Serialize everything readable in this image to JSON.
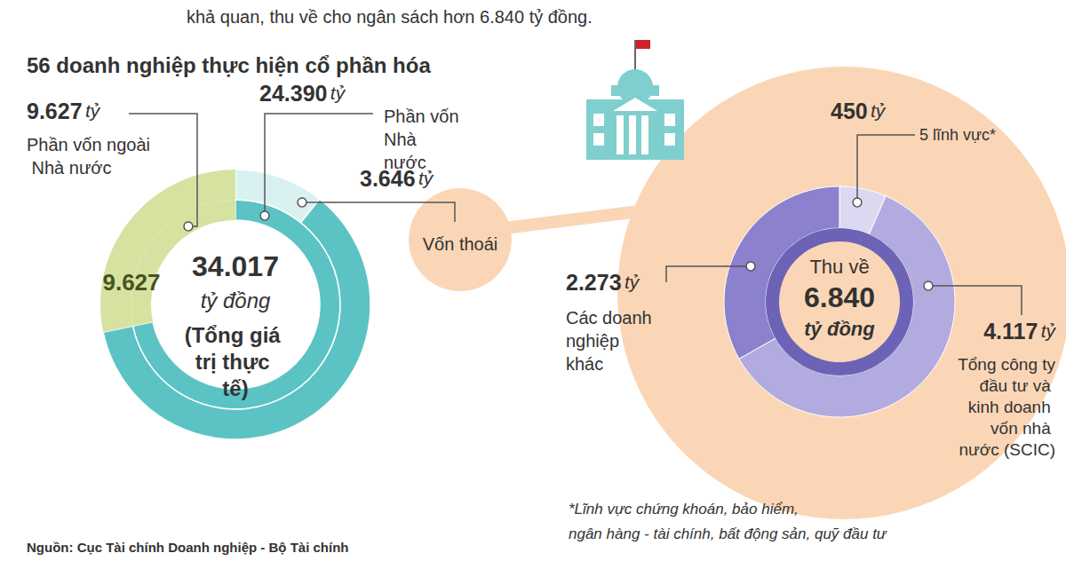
{
  "header": "khả quan, thu về cho ngân sách hơn 6.840 tỷ đồng.",
  "source": "Nguồn: Cục Tài chính Doanh nghiệp - Bộ Tài chính",
  "chart_data": [
    {
      "type": "pie",
      "title": "56 doanh nghiệp thực hiện cổ phần hóa",
      "unit": "tỷ",
      "categories": [
        "Phần vốn Nhà nước",
        "Phần vốn ngoài Nhà nước"
      ],
      "values": [
        24390,
        9627
      ],
      "value_labels": [
        "24.390",
        "9.627"
      ],
      "colors": [
        "#5cc3c4",
        "#d6e3a0"
      ],
      "inside_label": "9.627",
      "divested": {
        "label": "Vốn thoái",
        "value": 3646,
        "value_label": "3.646",
        "color": "#d9f1f1"
      },
      "total": {
        "value": 34017,
        "value_label": "34.017",
        "unit": "tỷ đồng",
        "label": "(Tổng giá trị thực tế)"
      }
    },
    {
      "type": "pie",
      "center_label": "Thu về",
      "unit": "tỷ",
      "categories": [
        "5 lĩnh vực*",
        "Tổng công ty đầu tư và kinh doanh vốn nhà nước (SCIC)",
        "Các doanh nghiệp khác"
      ],
      "values": [
        450,
        4117,
        2273
      ],
      "value_labels": [
        "450",
        "4.117",
        "2.273"
      ],
      "colors": [
        "#dcd8f1",
        "#b2abdf",
        "#8b81cc"
      ],
      "total": {
        "value": 6840,
        "value_label": "6.840",
        "unit": "tỷ đồng",
        "color": "#6c63b6"
      },
      "footnote": [
        "*Lĩnh vực chứng khoán, bảo hiểm,",
        "ngân hàng - tài chính, bất động sản, quỹ đầu tư"
      ]
    }
  ]
}
